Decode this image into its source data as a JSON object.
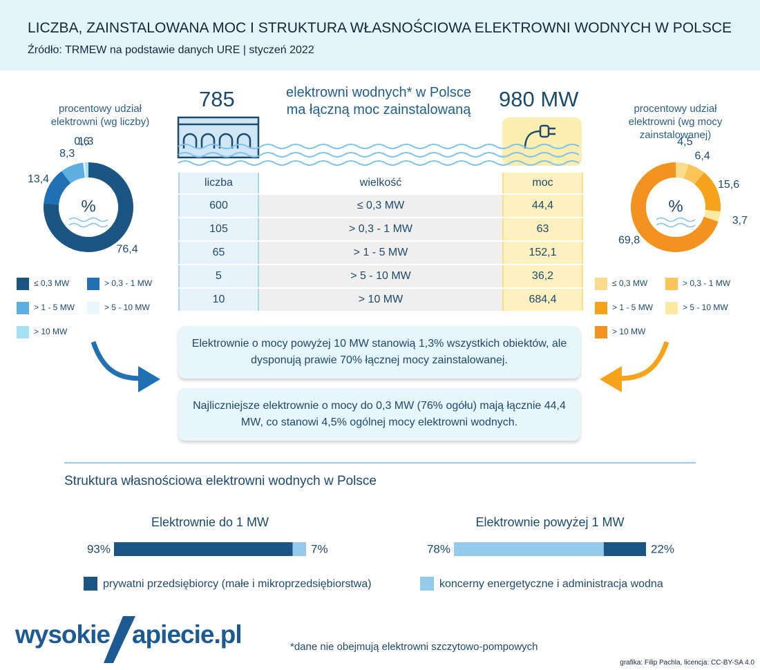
{
  "header": {
    "title": "LICZBA, ZAINSTALOWANA MOC I STRUKTURA WŁASNOŚCIOWA ELEKTROWNI WODNYCH W POLSCE",
    "source": "Źródło: TRMEW na podstawie danych URE | styczeń 2022"
  },
  "summary": {
    "count": "785",
    "line1": "elektrowni wodnych* w Polsce",
    "line2": "ma łączną moc zainstalowaną",
    "power": "980 MW"
  },
  "table": {
    "columns": [
      "liczba",
      "wielkość",
      "moc"
    ],
    "rows": [
      [
        "600",
        "≤ 0,3 MW",
        "44,4"
      ],
      [
        "105",
        "> 0,3 - 1 MW",
        "63"
      ],
      [
        "65",
        "> 1 - 5 MW",
        "152,1"
      ],
      [
        "5",
        "> 5 - 10 MW",
        "36,2"
      ],
      [
        "10",
        "> 10 MW",
        "684,4"
      ]
    ]
  },
  "notes": [
    "Elektrownie o mocy powyżej 10 MW stanowią 1,3% wszystkich obiektów,  ale dysponują prawie 70% łącznej mocy zainstalowanej.",
    "Najliczniejsze elektrownie  o mocy do 0,3 MW (76% ogółu) mają łącznie 44,4 MW, co stanowi 4,5% ogólnej mocy elektrowni wodnych."
  ],
  "chart_data": [
    {
      "type": "donut",
      "title": "procentowy udział elektrowni (wg liczby)",
      "center_label": "%",
      "categories": [
        "≤ 0,3 MW",
        "> 0,3 - 1 MW",
        "> 1 - 5 MW",
        "> 5 - 10 MW",
        "> 10 MW"
      ],
      "values": [
        76.4,
        13.4,
        8.3,
        0.6,
        1.3
      ],
      "value_labels": [
        "76,4",
        "13,4",
        "8,3",
        "0,6",
        "1,3"
      ],
      "colors": [
        "#1b5583",
        "#1f70b5",
        "#5cafe0",
        "#e9f6fc",
        "#a6e1f4"
      ]
    },
    {
      "type": "donut",
      "title": "procentowy udział elektrowni (wg mocy zainstalowanej)",
      "center_label": "%",
      "categories": [
        "≤ 0,3 MW",
        "> 0,3 - 1 MW",
        "> 1 - 5 MW",
        "> 5 - 10 MW",
        "> 10 MW"
      ],
      "values": [
        4.5,
        6.4,
        15.6,
        3.7,
        69.8
      ],
      "value_labels": [
        "4,5",
        "6,4",
        "15,6",
        "3,7",
        "69,8"
      ],
      "colors": [
        "#fcdc8c",
        "#fbc55a",
        "#f6a21b",
        "#fde9a3",
        "#f3931f"
      ]
    },
    {
      "type": "stacked_bar",
      "title": "Struktura własnościowa elektrowni wodnych w Polsce",
      "categories": [
        "Elektrownie do 1 MW",
        "Elektrownie powyżej 1 MW"
      ],
      "series": [
        {
          "name": "prywatni przedsiębiorcy (małe i mikroprzedsiębiorstwa)",
          "color": "#1b5583",
          "values": [
            93,
            22
          ],
          "value_labels": [
            "93%",
            "22%"
          ]
        },
        {
          "name": "koncerny energetyczne i administracja wodna",
          "color": "#93c9eb",
          "values": [
            7,
            78
          ],
          "value_labels": [
            "7%",
            "78%"
          ]
        }
      ],
      "xlim": [
        0,
        100
      ]
    }
  ],
  "footnote": "*dane nie obejmują elektrowni szczytowo-pompowych",
  "credit": "grafika: Filip Pachla, licencja: CC-BY-SA 4.0",
  "logo": {
    "left": "wysokie",
    "right": "apiecie.pl"
  }
}
